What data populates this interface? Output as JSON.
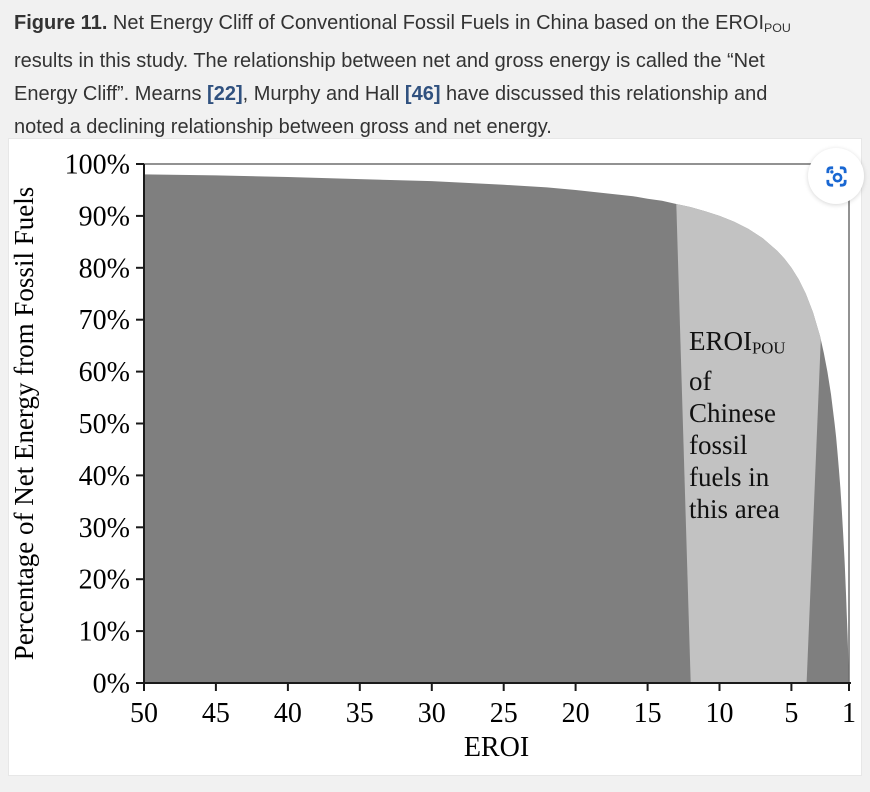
{
  "caption": {
    "citation_color": "#30517f",
    "lines": [
      {
        "segments": [
          {
            "text": "Figure 11.",
            "style": "bold"
          },
          {
            "text": " Net Energy Cliff of Conventional Fossil Fuels in China based on the ",
            "style": "normal"
          },
          {
            "text": "EROI",
            "style": "normal"
          },
          {
            "text": "POU",
            "style": "subscript"
          }
        ]
      },
      {
        "segments": [
          {
            "text": "results in this study. The relationship between net and gross energy is called the “Net",
            "style": "normal"
          }
        ]
      },
      {
        "segments": [
          {
            "text": "Energy Cliff”. Mearns ",
            "style": "normal"
          },
          {
            "text": "[22]",
            "style": "citation"
          },
          {
            "text": ", Murphy and Hall ",
            "style": "normal"
          },
          {
            "text": "[46]",
            "style": "citation"
          },
          {
            "text": " have discussed this relationship and",
            "style": "normal"
          }
        ]
      },
      {
        "segments": [
          {
            "text": "noted a declining relationship between gross and net energy.",
            "style": "normal"
          }
        ]
      }
    ]
  },
  "chart_data": {
    "type": "area",
    "title": "",
    "xlabel": "EROI",
    "ylabel": "Percentage of Net Energy from Fossil Fuels",
    "x_reversed": true,
    "x_range": [
      50,
      1
    ],
    "y_range_percent": [
      0,
      100
    ],
    "grid": false,
    "x_ticks": [
      "50",
      "45",
      "40",
      "35",
      "30",
      "25",
      "20",
      "15",
      "10",
      "5",
      "1"
    ],
    "x_tick_values": [
      50,
      45,
      40,
      35,
      30,
      25,
      20,
      15,
      10,
      5,
      1
    ],
    "y_ticks": [
      "100%",
      "90%",
      "80%",
      "70%",
      "60%",
      "50%",
      "40%",
      "30%",
      "20%",
      "10%",
      "0%"
    ],
    "y_tick_values": [
      100,
      90,
      80,
      70,
      60,
      50,
      40,
      30,
      20,
      10,
      0
    ],
    "series": [
      {
        "name": "net_energy_percentage",
        "relation": "net% = (1 - 1/EROI) x 100",
        "color": "#7f7f7f",
        "points": [
          [
            50,
            98.0
          ],
          [
            45,
            97.8
          ],
          [
            40,
            97.5
          ],
          [
            35,
            97.1
          ],
          [
            30,
            96.7
          ],
          [
            25,
            96.0
          ],
          [
            22,
            95.5
          ],
          [
            20,
            95.0
          ],
          [
            18,
            94.4
          ],
          [
            16,
            93.8
          ],
          [
            15,
            93.3
          ],
          [
            14,
            92.9
          ],
          [
            13,
            92.3
          ],
          [
            12,
            91.7
          ],
          [
            11,
            90.9
          ],
          [
            10,
            90.0
          ],
          [
            9,
            88.9
          ],
          [
            8,
            87.5
          ],
          [
            7,
            85.7
          ],
          [
            6,
            83.3
          ],
          [
            5.5,
            81.8
          ],
          [
            5,
            80.0
          ],
          [
            4.5,
            77.8
          ],
          [
            4,
            75.0
          ],
          [
            3.5,
            71.4
          ],
          [
            3,
            66.7
          ],
          [
            2.75,
            63.6
          ],
          [
            2.5,
            60.0
          ],
          [
            2.25,
            55.6
          ],
          [
            2,
            50.0
          ],
          [
            1.9,
            47.4
          ],
          [
            1.8,
            44.4
          ],
          [
            1.7,
            41.2
          ],
          [
            1.6,
            37.5
          ],
          [
            1.5,
            33.3
          ],
          [
            1.4,
            28.6
          ],
          [
            1.3,
            23.1
          ],
          [
            1.2,
            16.7
          ],
          [
            1.15,
            13.0
          ],
          [
            1.1,
            9.1
          ],
          [
            1.05,
            4.8
          ],
          [
            1,
            0.0
          ]
        ]
      }
    ],
    "highlight_band": {
      "color": "#c2c2c2",
      "description": "EROI POU range of Chinese fossil fuels",
      "curve_join_left_eroi": 13.0,
      "baseline_left_eroi": 12.0,
      "curve_join_right_eroi": 2.96,
      "baseline_right_eroi": 3.95
    },
    "annotation": {
      "line1_main": "EROI",
      "line1_sub": "POU",
      "lines_rest": [
        "of",
        "Chinese",
        "fossil",
        "fuels in",
        "this area"
      ],
      "full_label": "EROIPOU of Chinese fossil fuels in this area"
    },
    "axis_color": "#1a1a1a",
    "plot_border_color": "#6e6e6e"
  },
  "controls": {
    "image_search_button": {
      "icon": "lens-screenshot-icon",
      "color": "#1967d2"
    }
  }
}
